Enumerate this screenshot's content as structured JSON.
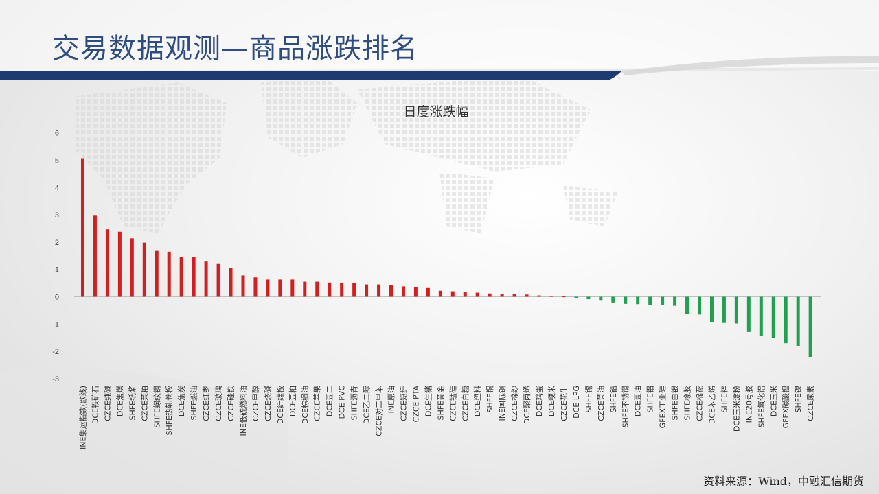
{
  "page": {
    "title": "交易数据观测—商品涨跌排名",
    "source": "资料来源：Wind，中融汇信期货"
  },
  "colors": {
    "up": "#d21f1f",
    "down": "#21a052",
    "title": "#2f4d7e",
    "accent_line": "#1f3a6e"
  },
  "chart_data": {
    "type": "bar",
    "title": "日度涨跌幅",
    "xlabel": "",
    "ylabel": "",
    "ylim": [
      -3,
      6
    ],
    "yticks": [
      -3,
      -2,
      -1,
      0,
      1,
      2,
      3,
      4,
      5,
      6
    ],
    "grid": false,
    "legend": "none",
    "categories": [
      "INE集运指数(欧线)",
      "DCE铁矿石",
      "CZCE纯碱",
      "DCE焦煤",
      "SHFE纸浆",
      "CZCE菜粕",
      "SHFE螺纹钢",
      "SHFE热轧卷板",
      "DCE焦炭",
      "SHFE燃油",
      "CZCE红枣",
      "CZCE玻璃",
      "CZCE硅铁",
      "INE低硫燃料油",
      "CZCE甲醇",
      "CZCE烧碱",
      "DCE纤维板",
      "DCE豆粕",
      "DCE棕榈油",
      "CZCE苹果",
      "DCE豆二",
      "DCE PVC",
      "SHFE沥青",
      "DCE乙二醇",
      "CZCE对二甲苯",
      "INE原油",
      "CZCE短纤",
      "CZCE PTA",
      "DCE生猪",
      "SHFE黄金",
      "CZCE锰硅",
      "CZCE白糖",
      "DCE塑料",
      "SHFE铜",
      "INE国际铜",
      "CZCE棉纱",
      "DCE聚丙烯",
      "DCE鸡蛋",
      "DCE粳米",
      "CZCE花生",
      "DCE LPG",
      "SHFE锡",
      "CZCE菜油",
      "SHFE铅",
      "SHFE不锈钢",
      "DCE豆油",
      "SHFE铝",
      "GFEX工业硅",
      "SHFE白银",
      "SHFE橡胶",
      "CZCE棉花",
      "DCE苯乙烯",
      "SHFE锌",
      "DCE玉米淀粉",
      "INE20号胶",
      "SHFE氧化铝",
      "DCE玉米",
      "GFEX碳酸锂",
      "SHFE镍",
      "CZCE尿素"
    ],
    "values": [
      5.05,
      2.97,
      2.47,
      2.38,
      2.14,
      1.98,
      1.68,
      1.65,
      1.47,
      1.45,
      1.29,
      1.2,
      1.05,
      0.78,
      0.71,
      0.63,
      0.63,
      0.63,
      0.55,
      0.55,
      0.52,
      0.5,
      0.5,
      0.45,
      0.45,
      0.42,
      0.38,
      0.35,
      0.32,
      0.22,
      0.2,
      0.18,
      0.15,
      0.12,
      0.1,
      0.09,
      0.08,
      0.05,
      0.03,
      0.01,
      -0.05,
      -0.09,
      -0.12,
      -0.21,
      -0.26,
      -0.27,
      -0.29,
      -0.31,
      -0.33,
      -0.63,
      -0.65,
      -0.92,
      -0.96,
      -0.98,
      -1.29,
      -1.44,
      -1.52,
      -1.7,
      -1.8,
      -2.2
    ]
  }
}
